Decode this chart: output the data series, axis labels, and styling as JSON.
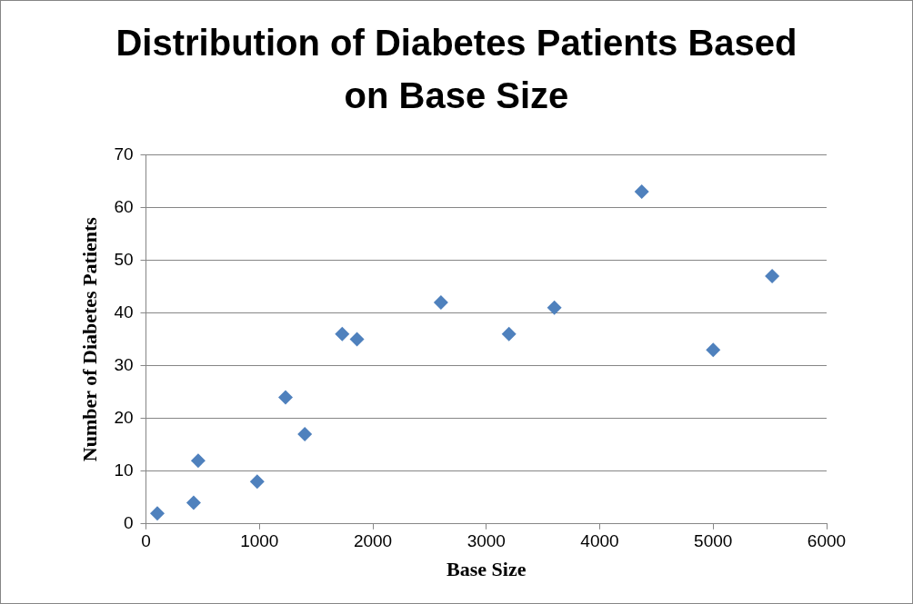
{
  "chart_data": {
    "type": "scatter",
    "title": "Distribution of Diabetes Patients Based on Base Size",
    "xlabel": "Base Size",
    "ylabel": "Number of Diabetes Patients",
    "x": [
      100,
      420,
      460,
      980,
      1230,
      1400,
      1730,
      1860,
      2600,
      3200,
      3600,
      4370,
      5000,
      5520
    ],
    "values": [
      2,
      4,
      12,
      8,
      24,
      17,
      36,
      35,
      42,
      36,
      41,
      63,
      33,
      47
    ],
    "color": "#4f81bd",
    "marker": "diamond",
    "xlim": [
      0,
      6000
    ],
    "xticks": [
      0,
      1000,
      2000,
      3000,
      4000,
      5000,
      6000
    ],
    "ylim": [
      0,
      70
    ],
    "yticks": [
      0,
      10,
      20,
      30,
      40,
      50,
      60,
      70
    ],
    "grid": "y",
    "legend": false
  }
}
